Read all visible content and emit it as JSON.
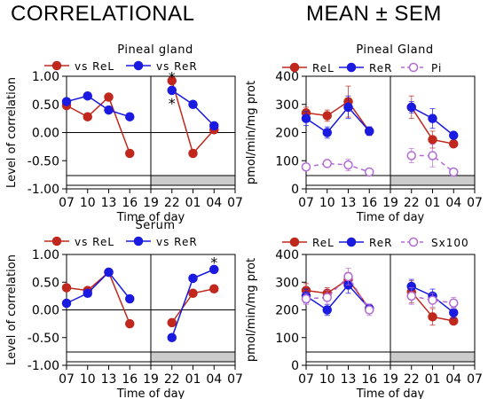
{
  "headings": {
    "left": "CORRELATIONAL",
    "right": "MEAN ± SEM"
  },
  "colors": {
    "rel": "#c0281e",
    "rer": "#1a1ae0",
    "third": "#b36ad6",
    "band_light": "#ffffff",
    "band_dark": "#cccccc"
  },
  "chart_data": [
    {
      "id": "pineal-correlation",
      "type": "line",
      "title": "Pineal gland",
      "xlabel": "Time of day",
      "ylabel": "Level of correlation",
      "categories": [
        "07",
        "10",
        "13",
        "16",
        "19",
        "22",
        "01",
        "04",
        "07"
      ],
      "ylim": [
        -1.0,
        1.0
      ],
      "yticks": [
        "1.00",
        "0.50",
        "0.00",
        "-0.50",
        "-1.00"
      ],
      "grid": false,
      "legend_position": "top",
      "series": [
        {
          "name": "vs ReL",
          "color_key": "rel",
          "values": [
            0.48,
            0.28,
            0.63,
            -0.37,
            null,
            0.92,
            -0.37,
            0.05,
            null
          ]
        },
        {
          "name": "vs ReR",
          "color_key": "rer",
          "values": [
            0.55,
            0.65,
            0.4,
            0.28,
            null,
            0.75,
            0.5,
            0.12,
            null
          ]
        }
      ],
      "annotations": [
        {
          "text": "*",
          "x": "22",
          "y": 1.02,
          "color_key": "rel"
        },
        {
          "text": "*",
          "x": "22",
          "y": 0.56,
          "color_key": "rer"
        }
      ]
    },
    {
      "id": "pineal-mean",
      "type": "line",
      "title": "Pineal Gland",
      "xlabel": "Time of day",
      "ylabel": "pmol/min/mg prot",
      "categories": [
        "07",
        "10",
        "13",
        "16",
        "19",
        "22",
        "01",
        "04",
        "07"
      ],
      "ylim": [
        0,
        400
      ],
      "yticks": [
        "400",
        "300",
        "200",
        "100",
        "0"
      ],
      "grid": false,
      "legend_position": "top",
      "series": [
        {
          "name": "ReL",
          "color_key": "rel",
          "values": [
            270,
            260,
            310,
            205,
            null,
            290,
            175,
            160,
            null
          ],
          "errors": [
            20,
            20,
            55,
            15,
            null,
            40,
            30,
            10,
            null
          ]
        },
        {
          "name": "ReR",
          "color_key": "rer",
          "values": [
            250,
            200,
            290,
            205,
            null,
            290,
            250,
            190,
            null
          ],
          "errors": [
            25,
            20,
            40,
            15,
            null,
            20,
            35,
            10,
            null
          ]
        },
        {
          "name": "Pi",
          "color_key": "third",
          "values": [
            78,
            90,
            85,
            60,
            null,
            118,
            118,
            60,
            null
          ],
          "errors": [
            12,
            10,
            20,
            10,
            null,
            25,
            40,
            10,
            null
          ],
          "dashed": true,
          "hollow": true
        }
      ]
    },
    {
      "id": "serum-correlation",
      "type": "line",
      "title": "Serum",
      "xlabel": "Time of day",
      "ylabel": "Level of correlation",
      "categories": [
        "07",
        "10",
        "13",
        "16",
        "19",
        "22",
        "01",
        "04",
        "07"
      ],
      "ylim": [
        -1.0,
        1.0
      ],
      "yticks": [
        "1.00",
        "0.50",
        "0.00",
        "-0.50",
        "-1.00"
      ],
      "grid": false,
      "legend_position": "top",
      "series": [
        {
          "name": "vs ReL",
          "color_key": "rel",
          "values": [
            0.4,
            0.35,
            0.68,
            -0.25,
            null,
            -0.23,
            0.3,
            0.38,
            null
          ]
        },
        {
          "name": "vs ReR",
          "color_key": "rer",
          "values": [
            0.12,
            0.3,
            0.68,
            0.2,
            null,
            -0.5,
            0.57,
            0.73,
            null
          ]
        }
      ],
      "annotations": [
        {
          "text": "*",
          "x": "04",
          "y": 0.9,
          "color_key": "rer"
        }
      ]
    },
    {
      "id": "serum-mean",
      "type": "line",
      "title": "",
      "xlabel": "Time of day",
      "ylabel": "pmol/min/mg prot",
      "categories": [
        "07",
        "10",
        "13",
        "16",
        "19",
        "22",
        "01",
        "04",
        "07"
      ],
      "ylim": [
        0,
        400
      ],
      "yticks": [
        "400",
        "300",
        "200",
        "100",
        "0"
      ],
      "grid": false,
      "legend_position": "top",
      "series": [
        {
          "name": "ReL",
          "color_key": "rel",
          "values": [
            270,
            260,
            310,
            205,
            null,
            265,
            175,
            160,
            null
          ],
          "errors": [
            25,
            20,
            25,
            15,
            null,
            40,
            30,
            10,
            null
          ]
        },
        {
          "name": "ReR",
          "color_key": "rer",
          "values": [
            250,
            200,
            290,
            205,
            null,
            285,
            250,
            190,
            null
          ],
          "errors": [
            25,
            20,
            30,
            15,
            null,
            25,
            25,
            20,
            null
          ]
        },
        {
          "name": "Sx100",
          "color_key": "third",
          "values": [
            240,
            245,
            320,
            200,
            null,
            250,
            235,
            225,
            null
          ],
          "errors": [
            20,
            25,
            30,
            20,
            null,
            30,
            25,
            20,
            null
          ],
          "dashed": true,
          "hollow": true
        }
      ]
    }
  ]
}
